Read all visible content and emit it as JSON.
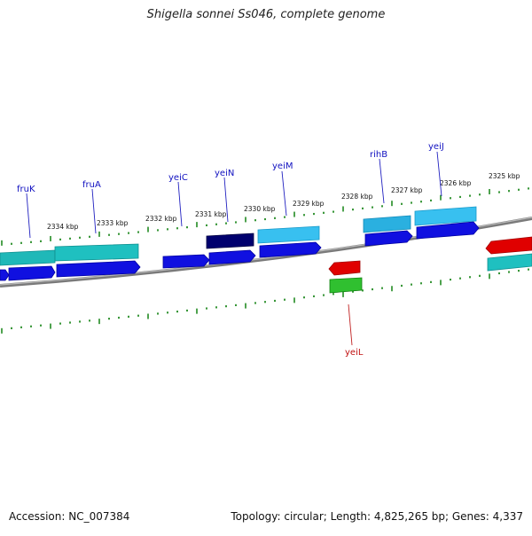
{
  "title": "Shigella sonnei Ss046, complete genome",
  "footer": {
    "accession": "Accession: NC_007384",
    "summary": "Topology: circular; Length: 4,825,265 bp; Genes: 4,337"
  },
  "scale_labels": [
    "2334 kbp",
    "2333 kbp",
    "2332 kbp",
    "2331 kbp",
    "2330 kbp",
    "2329 kbp",
    "2328 kbp",
    "2327 kbp",
    "2326 kbp",
    "2325 kbp"
  ],
  "gene_labels": {
    "fruK": "fruK",
    "fruA": "fruA",
    "yeiC": "yeiC",
    "yeiN": "yeiN",
    "yeiM": "yeiM",
    "rihB": "rihB",
    "yeiJ": "yeiJ",
    "yeiL": "yeiL"
  },
  "colors": {
    "backbone": "#808080",
    "ticks": "#228B22",
    "forward_label": "#0000cc",
    "reverse_label": "#cc0000",
    "teal": "#20c8c8",
    "sky": "#3cc8f0",
    "blue": "#1010e0",
    "navy": "#00007a",
    "red": "#e00000",
    "green": "#30c030"
  }
}
